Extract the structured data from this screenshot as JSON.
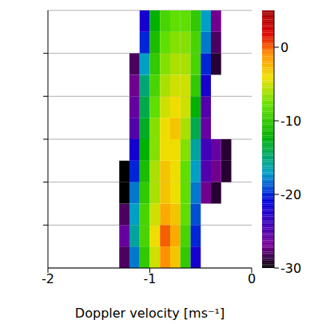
{
  "chart_data": {
    "type": "heatmap",
    "xlabel": "Doppler velocity [ms⁻¹]",
    "xlim": [
      -2,
      0
    ],
    "xticks": [
      -2,
      -1,
      0
    ],
    "ylim": [
      0,
      6
    ],
    "yticks": [
      1,
      2,
      3,
      4,
      5
    ],
    "grid": true,
    "tick_labels": "x",
    "x_edges": [
      -1.3,
      -1.2,
      -1.1,
      -1.0,
      -0.9,
      -0.8,
      -0.7,
      -0.6,
      -0.5,
      -0.4,
      -0.3,
      -0.2
    ],
    "y_edges": [
      0,
      0.5,
      1,
      1.5,
      2,
      2.5,
      3,
      3.5,
      4,
      4.5,
      5,
      5.5,
      6
    ],
    "values": [
      [
        -28,
        -18,
        -10,
        -5,
        -1,
        -3,
        -10,
        -22,
        null,
        null,
        null
      ],
      [
        -26,
        -16,
        -9,
        -4,
        0,
        -2,
        -9,
        -20,
        null,
        null,
        null
      ],
      [
        -28,
        -17,
        -9,
        -5,
        -2,
        -3,
        -8,
        -19,
        null,
        null,
        null
      ],
      [
        -30,
        -18,
        -10,
        -6,
        -3,
        -4,
        -8,
        -18,
        -27,
        -29,
        null
      ],
      [
        -30,
        -20,
        -11,
        -6,
        -3,
        -4,
        -8,
        -17,
        -25,
        -27,
        -29
      ],
      [
        null,
        -22,
        -12,
        -7,
        -4,
        -4,
        -7,
        -16,
        -24,
        -26,
        -29
      ],
      [
        null,
        -25,
        -13,
        -7,
        -4,
        -3,
        -6,
        -14,
        -26,
        null,
        null
      ],
      [
        null,
        -26,
        -14,
        -8,
        -5,
        -4,
        -5,
        -12,
        -25,
        null,
        null
      ],
      [
        null,
        -27,
        -15,
        -9,
        -6,
        -5,
        -5,
        -10,
        -22,
        null,
        null
      ],
      [
        null,
        -28,
        -17,
        -10,
        -7,
        -6,
        -6,
        -9,
        -20,
        -29,
        null
      ],
      [
        null,
        null,
        -20,
        -11,
        -8,
        -7,
        -7,
        -9,
        -18,
        -28,
        null
      ],
      [
        null,
        null,
        -22,
        -12,
        -9,
        -8,
        -8,
        -10,
        -17,
        -27,
        null
      ]
    ],
    "colorbar_lim": [
      -30,
      5
    ],
    "colorbar_ticks": [
      -30,
      -20,
      -10,
      0
    ]
  }
}
